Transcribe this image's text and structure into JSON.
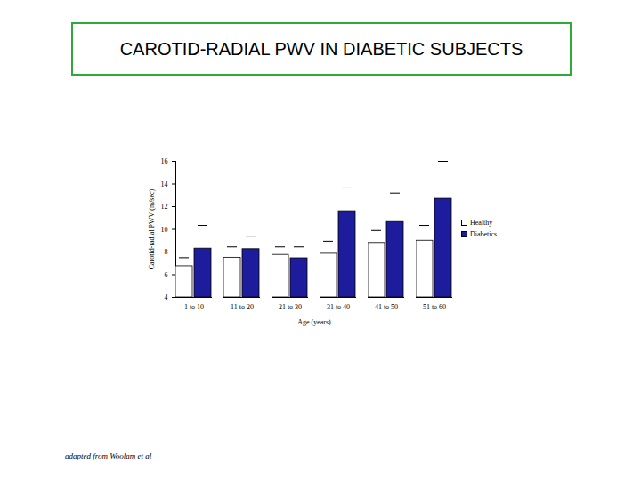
{
  "chart_data": {
    "type": "bar",
    "title": "CAROTID-RADIAL PWV IN DIABETIC SUBJECTS",
    "categories": [
      "1 to 10",
      "11 to 20",
      "21 to 30",
      "31 to 40",
      "41 to 50",
      "51 to 60"
    ],
    "series": [
      {
        "name": "Healthy",
        "color": "#ffffff",
        "values": [
          6.75,
          7.5,
          7.75,
          7.85,
          8.8,
          9.0
        ],
        "errors": [
          0.75,
          0.95,
          0.7,
          1.1,
          1.1,
          1.35
        ]
      },
      {
        "name": "Diabetics",
        "color": "#1c1c9c",
        "values": [
          8.3,
          8.25,
          7.45,
          11.6,
          10.65,
          12.7
        ],
        "errors": [
          2.05,
          1.15,
          1.0,
          2.05,
          2.55,
          3.3
        ]
      }
    ],
    "x_label": "Age (years)",
    "y_label": "Carotid-radial PWV (m/sec)",
    "ylim": [
      4,
      16
    ],
    "yticks": [
      4,
      6,
      8,
      10,
      12,
      14,
      16
    ],
    "grid": false,
    "legend": "right",
    "caption": "adapted from Woolam et al"
  }
}
